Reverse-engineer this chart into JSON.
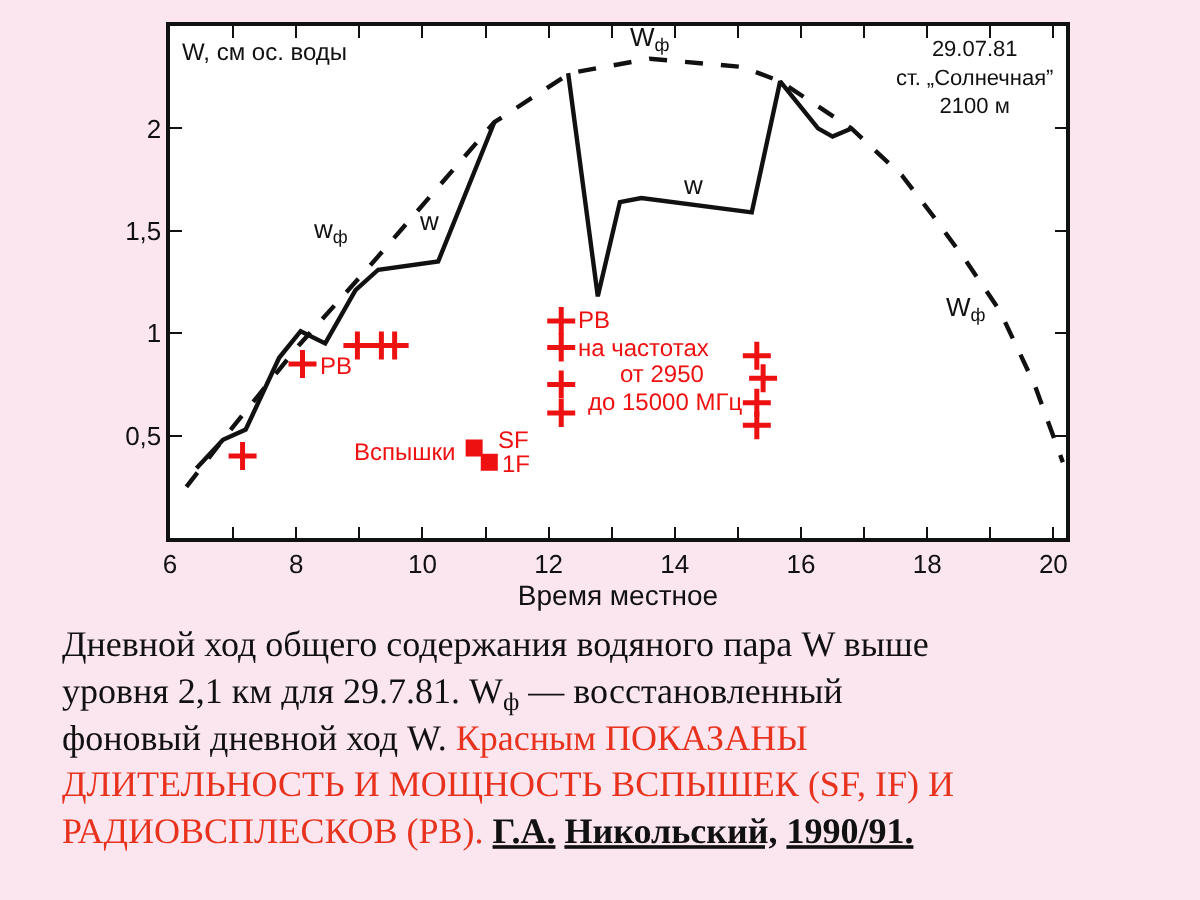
{
  "chart_data": {
    "type": "line",
    "xlabel": "Время местное",
    "ylabel": "W, см ос. воды",
    "xlim": [
      6,
      20.2
    ],
    "ylim": [
      0,
      2.5
    ],
    "xticks": [
      6,
      {
        "value": 7,
        "label": null
      },
      8,
      {
        "value": 9,
        "label": null
      },
      10,
      {
        "value": 11,
        "label": null
      },
      12,
      {
        "value": 13,
        "label": null
      },
      14,
      {
        "value": 15,
        "label": null
      },
      16,
      {
        "value": 17,
        "label": null
      },
      18,
      {
        "value": 19,
        "label": null
      },
      20
    ],
    "yticks": [
      {
        "value": 0.5,
        "label": "0,5"
      },
      1,
      {
        "value": 1.5,
        "label": "1,5"
      },
      2
    ],
    "series": [
      {
        "line_style": "dashed",
        "marker": "none",
        "color": "#111111",
        "x": [
          6.26,
          6.94,
          8.04,
          9.2,
          11.14,
          12.34,
          13.6,
          15.07,
          15.67,
          16.8,
          17.6,
          18.1,
          18.6,
          19.15,
          19.7,
          20.15
        ],
        "values": [
          0.25,
          0.52,
          0.94,
          1.34,
          2.03,
          2.27,
          2.34,
          2.3,
          2.23,
          2.0,
          1.77,
          1.57,
          1.36,
          1.11,
          0.75,
          0.37
        ]
      },
      {
        "line_style": "solid",
        "marker": "none",
        "color": "#111111",
        "x": [
          6.42,
          6.84,
          7.2,
          7.73,
          8.07,
          8.46,
          8.94,
          9.3,
          10.25,
          11.14,
          11.7,
          12.31,
          12.78,
          13.13,
          13.47,
          15.22,
          15.67,
          16.27,
          16.5,
          16.8
        ],
        "values": [
          0.34,
          0.48,
          0.53,
          0.88,
          1.01,
          0.95,
          1.21,
          1.31,
          1.35,
          2.03,
          null,
          2.27,
          1.18,
          1.64,
          1.66,
          1.59,
          2.23,
          2.0,
          1.96,
          2.0
        ]
      },
      {
        "type": "scatter",
        "marker": "cross",
        "color": "#ee1111",
        "x": [
          7.15,
          8.1,
          8.97,
          9.35,
          9.56
        ],
        "values": [
          0.4,
          0.85,
          0.94,
          0.94,
          0.94
        ]
      },
      {
        "type": "scatter",
        "marker": "square",
        "color": "#ee1111",
        "x": [
          10.82,
          11.06
        ],
        "values": [
          0.44,
          0.37
        ]
      },
      {
        "type": "scatter",
        "marker": "cross",
        "color": "#ee1111",
        "x": [
          12.2,
          12.2,
          12.2,
          12.2,
          15.3,
          15.3,
          15.3,
          15.4
        ],
        "values": [
          1.06,
          0.93,
          0.75,
          0.61,
          0.89,
          0.66,
          0.55,
          0.78
        ]
      }
    ],
    "annotations": [
      "W$_{ф}$",
      "w$_{ф}$",
      "w",
      "w",
      "W$_{ф}$",
      "РВ",
      "Вспышки",
      "SF",
      "1F",
      "РВ",
      "на частотах",
      "от 2950",
      "до 15000 МГц",
      "29.07.81\nст. „Солнечная”\n2100 м",
      "Дневной ход общего содержания водяного пара W выше уровня 2,1 км для 29.7.81. W$_{ф}$ — восстановленный фоновый дневной ход W.",
      "Красным ПОКАЗАНЫ ДЛИТЕЛЬНОСТЬ И МОЩНОСТЬ ВСПЫШЕК (SF, IF) И РАДИОВСПЛЕСКОВ (РВ).",
      "Г.А. Никольский, 1990/91."
    ]
  }
}
